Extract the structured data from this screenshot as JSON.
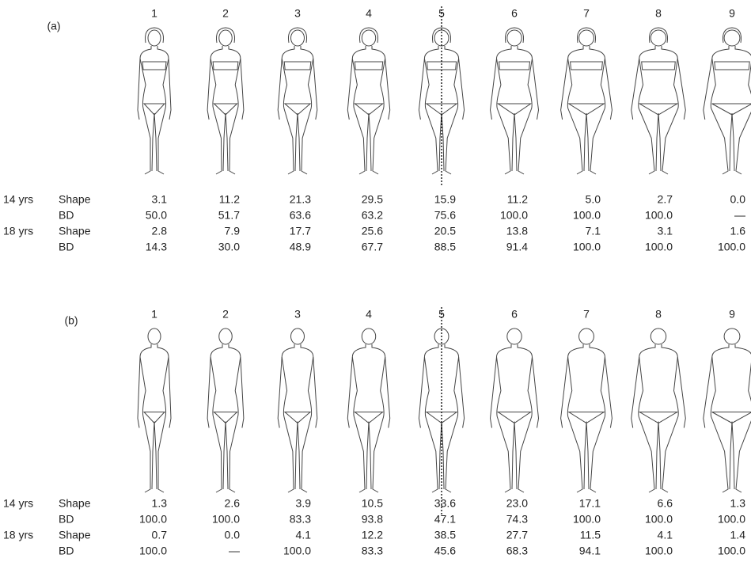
{
  "panels": [
    {
      "label": "(a)",
      "figures": [
        "1",
        "2",
        "3",
        "4",
        "5",
        "6",
        "7",
        "8",
        "9"
      ],
      "rows": [
        {
          "age": "14 yrs",
          "measure": "Shape",
          "values": [
            "3.1",
            "11.2",
            "21.3",
            "29.5",
            "15.9",
            "11.2",
            "5.0",
            "2.7",
            "0.0"
          ]
        },
        {
          "measure": "BD",
          "values": [
            "50.0",
            "51.7",
            "63.6",
            "63.2",
            "75.6",
            "100.0",
            "100.0",
            "100.0",
            "—"
          ]
        },
        {
          "age": "18 yrs",
          "measure": "Shape",
          "values": [
            "2.8",
            "7.9",
            "17.7",
            "25.6",
            "20.5",
            "13.8",
            "7.1",
            "3.1",
            "1.6"
          ]
        },
        {
          "measure": "BD",
          "values": [
            "14.3",
            "30.0",
            "48.9",
            "67.7",
            "88.5",
            "91.4",
            "100.0",
            "100.0",
            "100.0"
          ]
        }
      ]
    },
    {
      "label": "(b)",
      "figures": [
        "1",
        "2",
        "3",
        "4",
        "5",
        "6",
        "7",
        "8",
        "9"
      ],
      "rows": [
        {
          "age": "14 yrs",
          "measure": "Shape",
          "values": [
            "1.3",
            "2.6",
            "3.9",
            "10.5",
            "33.6",
            "23.0",
            "17.1",
            "6.6",
            "1.3"
          ]
        },
        {
          "measure": "BD",
          "values": [
            "100.0",
            "100.0",
            "83.3",
            "93.8",
            "47.1",
            "74.3",
            "100.0",
            "100.0",
            "100.0"
          ]
        },
        {
          "age": "18 yrs",
          "measure": "Shape",
          "values": [
            "0.7",
            "0.0",
            "4.1",
            "12.2",
            "38.5",
            "27.7",
            "11.5",
            "4.1",
            "1.4"
          ]
        },
        {
          "measure": "BD",
          "values": [
            "100.0",
            "—",
            "100.0",
            "83.3",
            "45.6",
            "68.3",
            "94.1",
            "100.0",
            "100.0"
          ]
        }
      ]
    }
  ]
}
